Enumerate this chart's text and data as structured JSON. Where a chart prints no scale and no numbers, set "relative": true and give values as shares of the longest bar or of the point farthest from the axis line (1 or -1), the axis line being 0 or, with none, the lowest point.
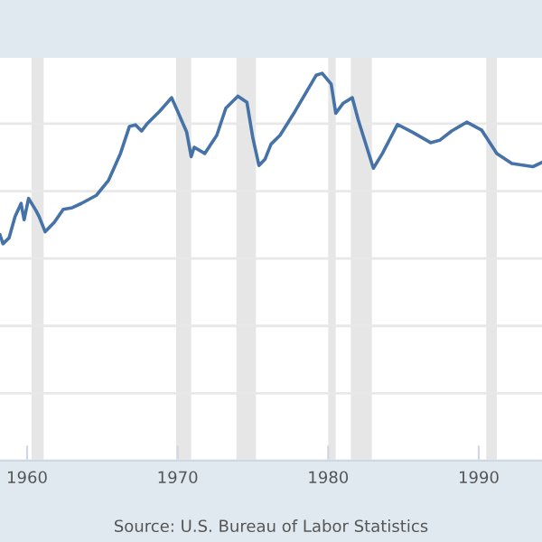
{
  "chart_data": {
    "type": "line",
    "relative": true,
    "x": [
      1958.2,
      1958.4,
      1958.8,
      1959.2,
      1959.6,
      1959.8,
      1960.1,
      1960.6,
      1960.8,
      1961.2,
      1961.8,
      1962.4,
      1963.0,
      1963.6,
      1964.6,
      1965.4,
      1966.2,
      1966.8,
      1967.2,
      1967.6,
      1968.0,
      1968.8,
      1969.6,
      1970.0,
      1970.6,
      1970.9,
      1971.1,
      1971.8,
      1972.6,
      1973.2,
      1974.0,
      1974.6,
      1975.0,
      1975.4,
      1975.8,
      1976.2,
      1976.8,
      1977.8,
      1979.2,
      1979.6,
      1980.2,
      1980.5,
      1981.0,
      1981.6,
      1982.0,
      1983.0,
      1983.6,
      1984.6,
      1985.6,
      1986.8,
      1987.4,
      1988.2,
      1989.2,
      1990.2,
      1991.2,
      1992.2,
      1993.6,
      1994.2
    ],
    "series": [
      {
        "color": "#4572a7",
        "values": [
          0.583,
          0.56,
          0.575,
          0.63,
          0.664,
          0.622,
          0.677,
          0.645,
          0.63,
          0.591,
          0.615,
          0.649,
          0.653,
          0.664,
          0.685,
          0.723,
          0.793,
          0.863,
          0.867,
          0.851,
          0.871,
          0.902,
          0.937,
          0.902,
          0.848,
          0.785,
          0.809,
          0.793,
          0.84,
          0.91,
          0.941,
          0.925,
          0.832,
          0.762,
          0.778,
          0.817,
          0.84,
          0.902,
          0.995,
          1.0,
          0.972,
          0.897,
          0.923,
          0.937,
          0.879,
          0.755,
          0.793,
          0.868,
          0.848,
          0.821,
          0.827,
          0.851,
          0.874,
          0.853,
          0.793,
          0.767,
          0.759,
          0.77
        ]
      }
    ],
    "xlim": [
      1958.2,
      1994.2
    ],
    "xticks": [
      1960,
      1970,
      1980,
      1990
    ],
    "bands": [
      {
        "axis": "x",
        "from": 1960.3,
        "to": 1961.1,
        "color": "#e6e6e6"
      },
      {
        "axis": "x",
        "from": 1969.9,
        "to": 1970.9,
        "color": "#e6e6e6"
      },
      {
        "axis": "x",
        "from": 1973.9,
        "to": 1975.2,
        "color": "#e6e6e6"
      },
      {
        "axis": "x",
        "from": 1980.0,
        "to": 1980.5,
        "color": "#e6e6e6"
      },
      {
        "axis": "x",
        "from": 1981.5,
        "to": 1982.9,
        "color": "#e6e6e6"
      },
      {
        "axis": "x",
        "from": 1990.5,
        "to": 1991.2,
        "color": "#e6e6e6"
      }
    ],
    "grid": "y",
    "tick_labels": "x",
    "line_style": "solid",
    "marker": "none",
    "annotations": [
      "Source: U.S. Bureau of Labor Statistics"
    ]
  }
}
